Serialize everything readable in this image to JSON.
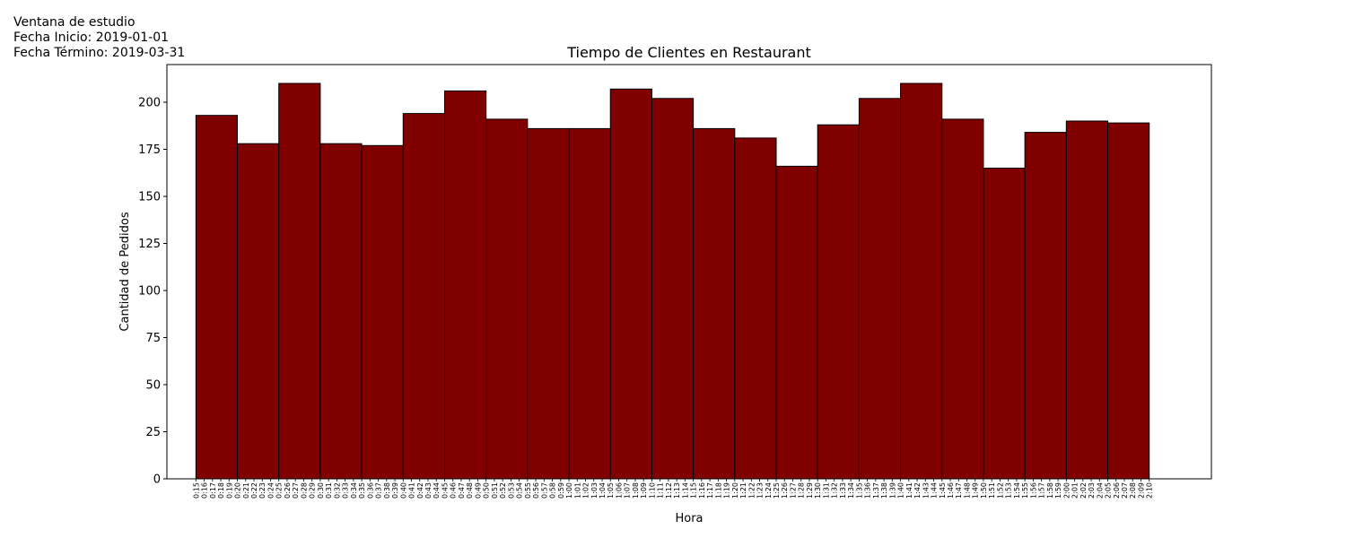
{
  "info": {
    "line1": "Ventana de estudio",
    "line2": "Fecha Inicio: 2019-01-01",
    "line3": "Fecha Término: 2019-03-31"
  },
  "chart_data": {
    "type": "bar",
    "title": "Tiempo de Clientes en Restaurant",
    "xlabel": "Hora",
    "ylabel": "Cantidad de Pedidos",
    "ylim": [
      0,
      220
    ],
    "yticks": [
      0,
      25,
      50,
      75,
      100,
      125,
      150,
      175,
      200
    ],
    "bin_start_minutes": 15,
    "bin_width_minutes": 5,
    "xlim_minutes": [
      11.5,
      137.5
    ],
    "categories": [
      "0:15",
      "0:20",
      "0:25",
      "0:30",
      "0:35",
      "0:40",
      "0:45",
      "0:50",
      "0:55",
      "1:00",
      "1:05",
      "1:10",
      "1:15",
      "1:20",
      "1:25",
      "1:30",
      "1:35",
      "1:40",
      "1:45",
      "1:50",
      "1:55",
      "2:00",
      "2:05"
    ],
    "values": [
      193,
      178,
      210,
      178,
      177,
      194,
      206,
      191,
      186,
      186,
      207,
      202,
      186,
      181,
      166,
      188,
      202,
      210,
      191,
      165,
      184,
      190,
      189
    ],
    "xtick_labels": [
      "0:15",
      "0:16",
      "0:17",
      "0:18",
      "0:19",
      "0:20",
      "0:21",
      "0:22",
      "0:23",
      "0:24",
      "0:25",
      "0:26",
      "0:27",
      "0:28",
      "0:29",
      "0:30",
      "0:31",
      "0:32",
      "0:33",
      "0:34",
      "0:35",
      "0:36",
      "0:37",
      "0:38",
      "0:39",
      "0:40",
      "0:41",
      "0:42",
      "0:43",
      "0:44",
      "0:45",
      "0:46",
      "0:47",
      "0:48",
      "0:49",
      "0:50",
      "0:51",
      "0:52",
      "0:53",
      "0:54",
      "0:55",
      "0:56",
      "0:57",
      "0:58",
      "0:59",
      "1:00",
      "1:01",
      "1:02",
      "1:03",
      "1:04",
      "1:05",
      "1:06",
      "1:07",
      "1:08",
      "1:09",
      "1:10",
      "1:11",
      "1:12",
      "1:13",
      "1:14",
      "1:15",
      "1:16",
      "1:17",
      "1:18",
      "1:19",
      "1:20",
      "1:21",
      "1:22",
      "1:23",
      "1:24",
      "1:25",
      "1:26",
      "1:27",
      "1:28",
      "1:29",
      "1:30",
      "1:31",
      "1:32",
      "1:33",
      "1:34",
      "1:35",
      "1:36",
      "1:37",
      "1:38",
      "1:39",
      "1:40",
      "1:41",
      "1:42",
      "1:43",
      "1:44",
      "1:45",
      "1:46",
      "1:47",
      "1:48",
      "1:49",
      "1:50",
      "1:51",
      "1:52",
      "1:53",
      "1:54",
      "1:55",
      "1:56",
      "1:57",
      "1:58",
      "1:59",
      "2:00",
      "2:01",
      "2:02",
      "2:03",
      "2:04",
      "2:05",
      "2:06",
      "2:07",
      "2:08",
      "2:09",
      "2:10"
    ],
    "bar_color": "#800000",
    "edge_color": "#000000",
    "grid": false
  }
}
